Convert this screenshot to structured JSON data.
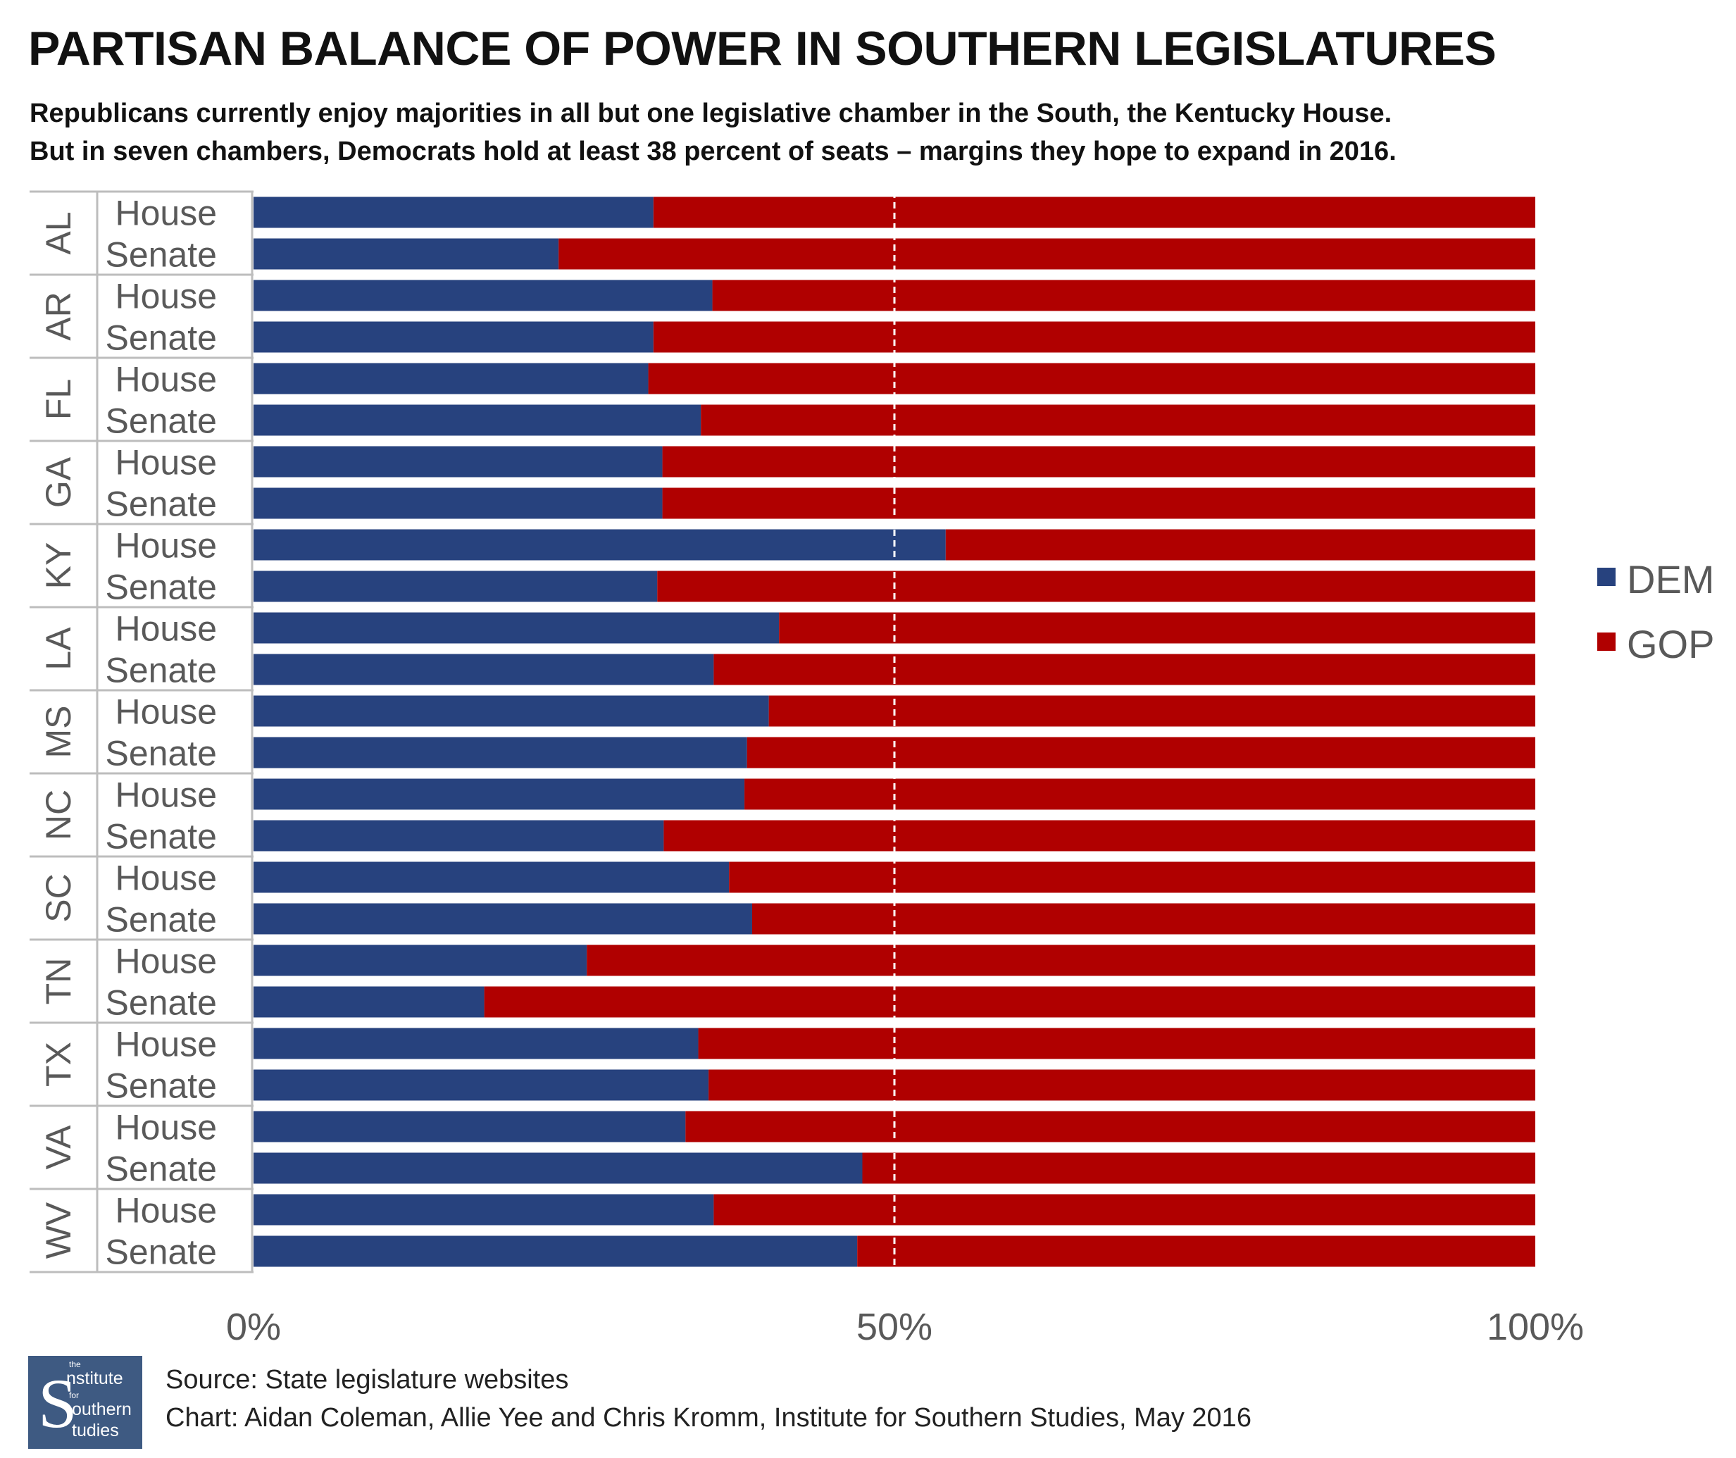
{
  "title": "PARTISAN BALANCE OF POWER IN SOUTHERN LEGISLATURES",
  "subtitle_line1": "Republicans currently enjoy majorities in all but one legislative chamber in the South, the Kentucky House.",
  "subtitle_line2": "But in seven chambers, Democrats hold at least 38 percent of seats – margins they hope to expand in 2016.",
  "source_line": "Source: State legislature websites",
  "credit_line": "Chart: Aidan Coleman, Allie Yee and Chris Kromm, Institute for Southern Studies, May 2016",
  "logo": {
    "line1": "the",
    "line2": "nstitute",
    "line3": "for",
    "line4": "outhern",
    "line5": "tudies"
  },
  "colors": {
    "dem": "#27427e",
    "gop": "#b00000",
    "grid": "#bdbdbd",
    "axis_text": "#595959"
  },
  "chart_data": {
    "type": "bar",
    "orientation": "horizontal",
    "stacked": "percent",
    "states": [
      "AL",
      "AR",
      "FL",
      "GA",
      "KY",
      "LA",
      "MS",
      "NC",
      "SC",
      "TN",
      "TX",
      "VA",
      "WV"
    ],
    "chambers": [
      "House",
      "Senate"
    ],
    "series": [
      {
        "name": "DEM",
        "color": "#27427e",
        "values": [
          31.2,
          23.8,
          35.8,
          31.2,
          30.8,
          34.9,
          31.9,
          31.9,
          54.0,
          31.5,
          41.0,
          35.9,
          40.2,
          38.5,
          38.3,
          32.0,
          37.1,
          38.9,
          26.0,
          18.0,
          34.7,
          35.5,
          33.7,
          47.5,
          35.9,
          47.1
        ]
      },
      {
        "name": "GOP",
        "color": "#b00000",
        "values": [
          68.8,
          76.2,
          64.2,
          68.8,
          69.2,
          65.1,
          68.1,
          68.1,
          46.0,
          68.5,
          59.0,
          64.1,
          59.8,
          61.5,
          61.7,
          68.0,
          62.9,
          61.1,
          74.0,
          82.0,
          65.3,
          64.5,
          66.3,
          52.5,
          64.1,
          52.9
        ]
      }
    ],
    "x_ticks": [
      "0%",
      "50%",
      "100%"
    ],
    "xlim": [
      0,
      100
    ],
    "reference_line": 50,
    "legend": [
      "DEM",
      "GOP"
    ],
    "legend_position": "right"
  }
}
